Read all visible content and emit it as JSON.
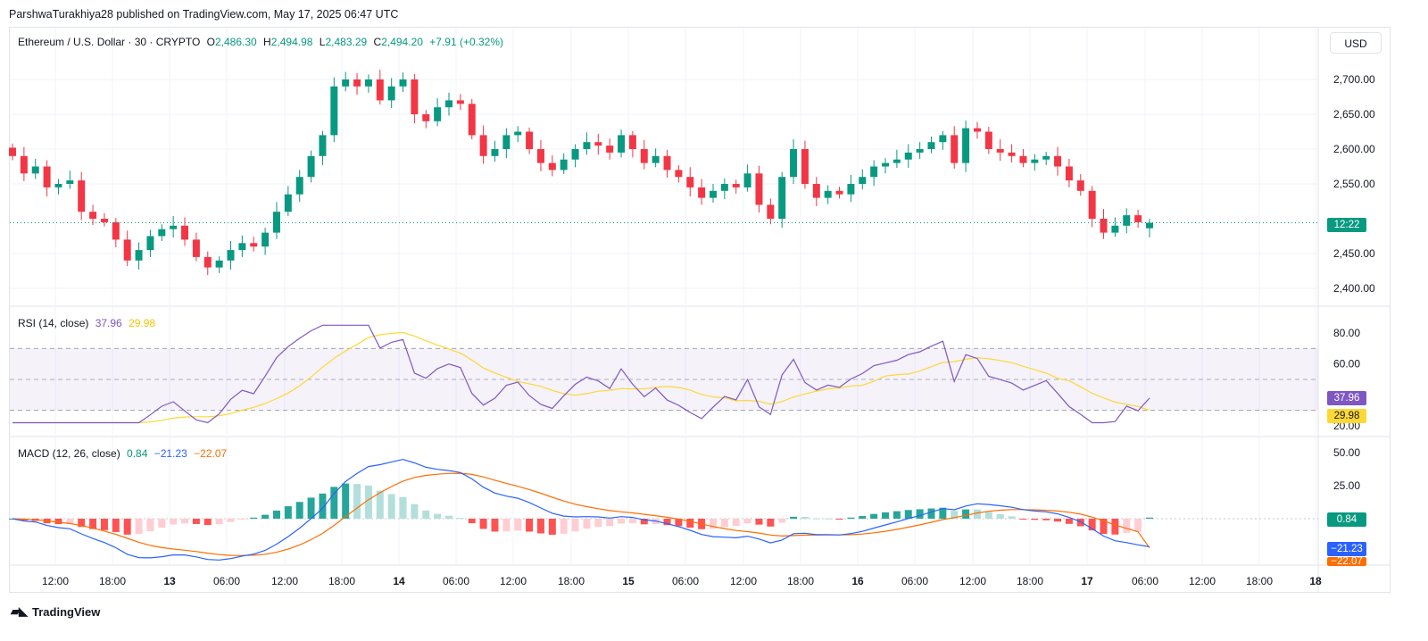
{
  "header": {
    "publisher": "ParshwaTurakhiya28 published on TradingView.com, May 17, 2025 06:47 UTC"
  },
  "price_legend": {
    "symbol": "Ethereum / U.S. Dollar · 30 · CRYPTO",
    "o_label": "O",
    "o": "2,486.30",
    "h_label": "H",
    "h": "2,494.98",
    "l_label": "L",
    "l": "2,483.29",
    "c_label": "C",
    "c": "2,494.20",
    "change": "+7.91 (+0.32%)"
  },
  "currency": "USD",
  "price_axis": {
    "ticks": [
      "2,700.00",
      "2,650.00",
      "2,600.00",
      "2,550.00",
      "2,450.00",
      "2,400.00"
    ],
    "countdown": "12:22"
  },
  "rsi_legend": {
    "label": "RSI (14, close)",
    "rsi": "37.96",
    "ma": "29.98"
  },
  "rsi_axis": {
    "ticks": [
      "80.00",
      "60.00",
      "20.00"
    ],
    "badge_rsi": "37.96",
    "badge_ma": "29.98"
  },
  "macd_legend": {
    "label": "MACD (12, 26, close)",
    "hist": "0.84",
    "macd": "−21.23",
    "signal": "−22.07"
  },
  "macd_axis": {
    "ticks": [
      "50.00",
      "25.00"
    ],
    "badge_hist": "0.84",
    "badge_macd": "−21.23",
    "badge_signal": "−22.07"
  },
  "time_axis": [
    "12:00",
    "18:00",
    "13",
    "06:00",
    "12:00",
    "18:00",
    "14",
    "06:00",
    "12:00",
    "18:00",
    "15",
    "06:00",
    "12:00",
    "18:00",
    "16",
    "06:00",
    "12:00",
    "18:00",
    "17",
    "06:00",
    "12:00",
    "18:00",
    "18"
  ],
  "brand": "TradingView",
  "colors": {
    "up": "#089981",
    "down": "#f23645",
    "rsi": "#7e57c2",
    "rsi_ma": "#fdd835",
    "macd": "#2962ff",
    "signal": "#ff6d00",
    "rsi_band": "#7e57c2"
  },
  "chart_data": [
    {
      "type": "candlestick",
      "title": "Ethereum / U.S. Dollar · 30 · CRYPTO",
      "x_labels": [
        "12:00",
        "18:00",
        "13",
        "06:00",
        "12:00",
        "18:00",
        "14",
        "06:00",
        "12:00",
        "18:00",
        "15",
        "06:00",
        "12:00",
        "18:00",
        "16",
        "06:00",
        "12:00",
        "18:00",
        "17",
        "06:00"
      ],
      "ylim": [
        2380,
        2740
      ],
      "close": [
        2590,
        2565,
        2575,
        2545,
        2550,
        2555,
        2510,
        2500,
        2495,
        2470,
        2440,
        2455,
        2475,
        2485,
        2490,
        2470,
        2445,
        2430,
        2440,
        2455,
        2465,
        2460,
        2480,
        2510,
        2535,
        2560,
        2590,
        2620,
        2690,
        2700,
        2690,
        2700,
        2670,
        2690,
        2700,
        2650,
        2640,
        2660,
        2670,
        2665,
        2620,
        2590,
        2600,
        2620,
        2625,
        2600,
        2580,
        2570,
        2585,
        2600,
        2610,
        2605,
        2595,
        2620,
        2600,
        2580,
        2590,
        2570,
        2560,
        2545,
        2530,
        2540,
        2550,
        2545,
        2565,
        2520,
        2500,
        2560,
        2600,
        2550,
        2530,
        2540,
        2535,
        2550,
        2560,
        2575,
        2580,
        2585,
        2595,
        2600,
        2610,
        2620,
        2580,
        2630,
        2625,
        2600,
        2595,
        2590,
        2580,
        2585,
        2590,
        2575,
        2555,
        2540,
        2500,
        2480,
        2490,
        2505,
        2495,
        2494
      ],
      "open_last": 2486.3,
      "high_last": 2494.98,
      "low_last": 2483.29,
      "close_last": 2494.2
    },
    {
      "type": "line",
      "title": "RSI (14, close)",
      "ylim": [
        15,
        90
      ],
      "series": [
        {
          "name": "RSI",
          "last": 37.96
        },
        {
          "name": "MA",
          "last": 29.98
        }
      ],
      "bands": [
        30,
        50,
        70
      ]
    },
    {
      "type": "line",
      "title": "MACD (12, 26, close)",
      "ylim": [
        -40,
        60
      ],
      "series": [
        {
          "name": "histogram",
          "last": 0.84
        },
        {
          "name": "MACD",
          "last": -21.23
        },
        {
          "name": "signal",
          "last": -22.07
        }
      ]
    }
  ]
}
